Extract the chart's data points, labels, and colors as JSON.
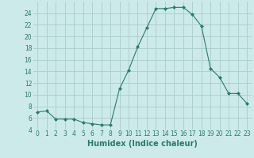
{
  "x": [
    0,
    1,
    2,
    3,
    4,
    5,
    6,
    7,
    8,
    9,
    10,
    11,
    12,
    13,
    14,
    15,
    16,
    17,
    18,
    19,
    20,
    21,
    22,
    23
  ],
  "y": [
    7.0,
    7.2,
    5.8,
    5.8,
    5.8,
    5.2,
    5.0,
    4.8,
    4.8,
    11.0,
    14.2,
    18.2,
    21.5,
    24.8,
    24.8,
    25.0,
    25.0,
    23.8,
    21.8,
    14.5,
    13.0,
    10.2,
    10.2,
    8.5
  ],
  "line_color": "#2a7a6f",
  "marker": "D",
  "marker_size": 2.0,
  "bg_color": "#cceaea",
  "grid_color": "#aacccc",
  "xlabel": "Humidex (Indice chaleur)",
  "xlim": [
    -0.5,
    23.5
  ],
  "ylim": [
    4,
    26
  ],
  "yticks": [
    4,
    6,
    8,
    10,
    12,
    14,
    16,
    18,
    20,
    22,
    24
  ],
  "xticks": [
    0,
    1,
    2,
    3,
    4,
    5,
    6,
    7,
    8,
    9,
    10,
    11,
    12,
    13,
    14,
    15,
    16,
    17,
    18,
    19,
    20,
    21,
    22,
    23
  ],
  "tick_label_fontsize": 5.5,
  "xlabel_fontsize": 7.0,
  "line_width": 0.8
}
